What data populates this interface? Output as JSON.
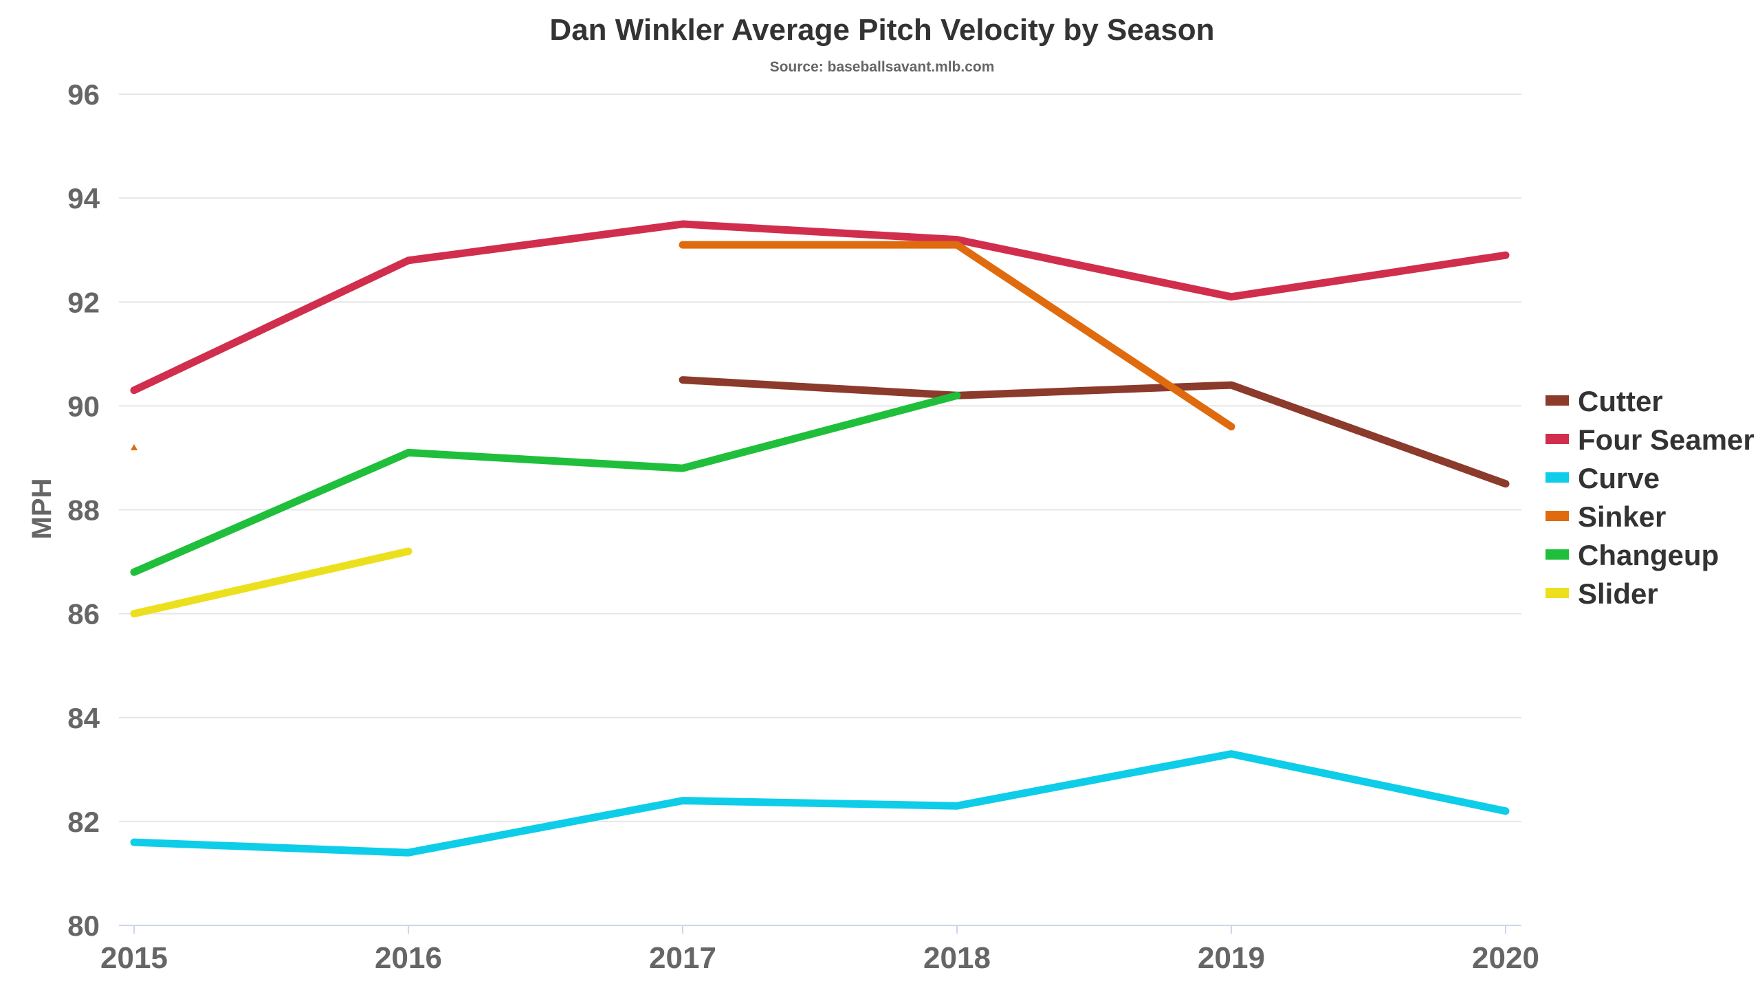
{
  "chart_data": {
    "type": "line",
    "title": "Dan Winkler Average Pitch Velocity by Season",
    "subtitle": "Source: baseballsavant.mlb.com",
    "xlabel": "",
    "ylabel": "MPH",
    "x": [
      2015,
      2016,
      2017,
      2018,
      2019,
      2020
    ],
    "ylim": [
      80,
      96
    ],
    "yticks": [
      80,
      82,
      84,
      86,
      88,
      90,
      92,
      94,
      96
    ],
    "grid": true,
    "legend_position": "right",
    "series": [
      {
        "name": "Cutter",
        "color": "#8b3a2b",
        "values": [
          null,
          null,
          90.5,
          90.2,
          90.4,
          88.5
        ]
      },
      {
        "name": "Four Seamer",
        "color": "#d12e4d",
        "values": [
          90.3,
          92.8,
          93.5,
          93.2,
          92.1,
          92.9
        ]
      },
      {
        "name": "Curve",
        "color": "#0dcde8",
        "values": [
          81.6,
          81.4,
          82.4,
          82.3,
          83.3,
          82.2
        ]
      },
      {
        "name": "Sinker",
        "color": "#df6b0e",
        "values": [
          89.2,
          null,
          93.1,
          93.1,
          89.6,
          null
        ]
      },
      {
        "name": "Changeup",
        "color": "#1fbf3c",
        "values": [
          86.8,
          89.1,
          88.8,
          90.2,
          null,
          null
        ]
      },
      {
        "name": "Slider",
        "color": "#ece01e",
        "values": [
          86.0,
          87.2,
          null,
          null,
          null,
          null
        ]
      }
    ]
  }
}
